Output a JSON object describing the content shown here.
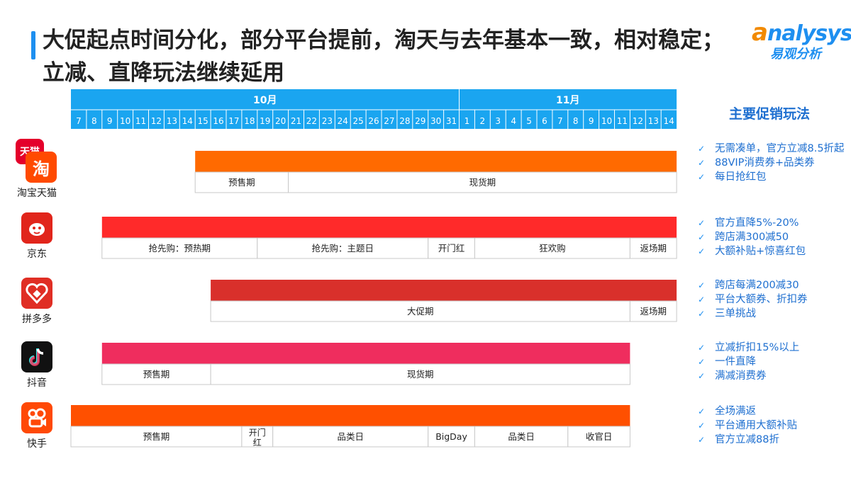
{
  "header": {
    "title": "大促起点时间分化，部分平台提前，淘天与去年基本一致，相对稳定；立减、直降玩法继续延用"
  },
  "brand": {
    "name_en_first": "a",
    "name_en_rest": "nalysys",
    "name_cn": "易观分析"
  },
  "sidebar": {
    "title": "主要促销玩法"
  },
  "months": [
    "10月",
    "11月"
  ],
  "days": [
    "7",
    "8",
    "9",
    "10",
    "11",
    "12",
    "13",
    "14",
    "15",
    "16",
    "17",
    "18",
    "19",
    "20",
    "21",
    "22",
    "23",
    "24",
    "25",
    "26",
    "27",
    "28",
    "29",
    "30",
    "31",
    "1",
    "2",
    "3",
    "4",
    "5",
    "6",
    "7",
    "8",
    "9",
    "10",
    "11",
    "12",
    "13",
    "14"
  ],
  "platforms": [
    {
      "name": "淘宝天猫",
      "logo_icon": "taobao-tmall-icon",
      "logo_text": "淘",
      "logo_text2": "天猫",
      "color": "#ff6a00",
      "bar_start": 8,
      "bar_end": 39,
      "phases": [
        {
          "label": "预售期",
          "start": 8,
          "end": 14
        },
        {
          "label": "现货期",
          "start": 14,
          "end": 39
        }
      ],
      "promos": [
        "无需凑单，官方立减8.5折起",
        "88VIP消费券+品类券",
        "每日抢红包"
      ]
    },
    {
      "name": "京东",
      "logo_icon": "jd-dog-icon",
      "logo_text": "",
      "color": "#ff2a2a",
      "bar_start": 2,
      "bar_end": 39,
      "phases": [
        {
          "label": "抢先购：预热期",
          "start": 2,
          "end": 12
        },
        {
          "label": "抢先购：主题日",
          "start": 12,
          "end": 23
        },
        {
          "label": "开门红",
          "start": 23,
          "end": 26
        },
        {
          "label": "狂欢购",
          "start": 26,
          "end": 36
        },
        {
          "label": "返场期",
          "start": 36,
          "end": 39
        }
      ],
      "promos": [
        "官方直降5%-20%",
        "跨店满300减50",
        "大额补贴+惊喜红包"
      ]
    },
    {
      "name": "拼多多",
      "logo_icon": "pinduoduo-heart-icon",
      "logo_text": "",
      "color": "#d9302b",
      "bar_start": 9,
      "bar_end": 39,
      "phases": [
        {
          "label": "大促期",
          "start": 9,
          "end": 36
        },
        {
          "label": "返场期",
          "start": 36,
          "end": 39
        }
      ],
      "promos": [
        "跨店每满200减30",
        "平台大额券、折扣券",
        "三单挑战"
      ]
    },
    {
      "name": "抖音",
      "logo_icon": "douyin-note-icon",
      "logo_text": "",
      "color": "#ef2d5e",
      "bar_start": 2,
      "bar_end": 36,
      "phases": [
        {
          "label": "预售期",
          "start": 2,
          "end": 9
        },
        {
          "label": "现货期",
          "start": 9,
          "end": 36
        }
      ],
      "promos": [
        "立减折扣15%以上",
        "一件直降",
        "满减消费券"
      ]
    },
    {
      "name": "快手",
      "logo_icon": "kuaishou-icon",
      "logo_text": "",
      "color": "#ff5000",
      "bar_start": 0,
      "bar_end": 36,
      "phases": [
        {
          "label": "预售期",
          "start": 0,
          "end": 11
        },
        {
          "label": "开门红",
          "start": 11,
          "end": 13
        },
        {
          "label": "品类日",
          "start": 13,
          "end": 23
        },
        {
          "label": "BigDay",
          "start": 23,
          "end": 26
        },
        {
          "label": "品类日",
          "start": 26,
          "end": 32
        },
        {
          "label": "收官日",
          "start": 32,
          "end": 36
        }
      ],
      "promos": [
        "全场满返",
        "平台通用大额补贴",
        "官方立减88折"
      ]
    }
  ],
  "colors": {
    "header_blue": "#1aa5f0",
    "accent": "#1e8ff0",
    "promo_text": "#1e6fd0"
  }
}
